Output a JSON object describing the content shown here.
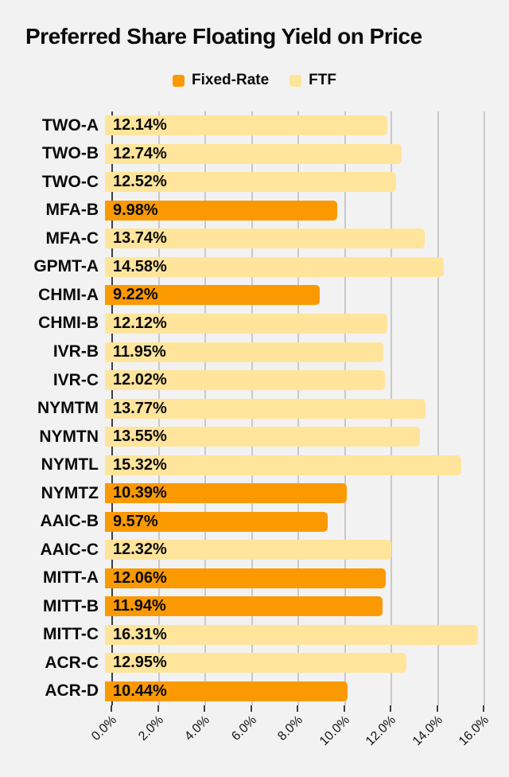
{
  "chart_data": {
    "type": "bar",
    "orientation": "horizontal",
    "title": "Preferred Share Floating Yield on Price",
    "legend": [
      {
        "label": "Fixed-Rate",
        "color": "#FB9902"
      },
      {
        "label": "FTF",
        "color": "#FFE59C"
      }
    ],
    "legend_position": "top-center",
    "x_axis": {
      "ticks": [
        "0.0%",
        "2.0%",
        "4.0%",
        "6.0%",
        "8.0%",
        "10.0%",
        "12.0%",
        "14.0%",
        "16.0%"
      ],
      "min": 0,
      "max": 16,
      "unit": "%",
      "grid": true
    },
    "items": [
      {
        "category": "TWO-A",
        "value": 12.14,
        "label": "12.14%",
        "series": "FTF"
      },
      {
        "category": "TWO-B",
        "value": 12.74,
        "label": "12.74%",
        "series": "FTF"
      },
      {
        "category": "TWO-C",
        "value": 12.52,
        "label": "12.52%",
        "series": "FTF"
      },
      {
        "category": "MFA-B",
        "value": 9.98,
        "label": "9.98%",
        "series": "Fixed-Rate"
      },
      {
        "category": "MFA-C",
        "value": 13.74,
        "label": "13.74%",
        "series": "FTF"
      },
      {
        "category": "GPMT-A",
        "value": 14.58,
        "label": "14.58%",
        "series": "FTF"
      },
      {
        "category": "CHMI-A",
        "value": 9.22,
        "label": "9.22%",
        "series": "Fixed-Rate"
      },
      {
        "category": "CHMI-B",
        "value": 12.12,
        "label": "12.12%",
        "series": "FTF"
      },
      {
        "category": "IVR-B",
        "value": 11.95,
        "label": "11.95%",
        "series": "FTF"
      },
      {
        "category": "IVR-C",
        "value": 12.02,
        "label": "12.02%",
        "series": "FTF"
      },
      {
        "category": "NYMTM",
        "value": 13.77,
        "label": "13.77%",
        "series": "FTF"
      },
      {
        "category": "NYMTN",
        "value": 13.55,
        "label": "13.55%",
        "series": "FTF"
      },
      {
        "category": "NYMTL",
        "value": 15.32,
        "label": "15.32%",
        "series": "FTF"
      },
      {
        "category": "NYMTZ",
        "value": 10.39,
        "label": "10.39%",
        "series": "Fixed-Rate"
      },
      {
        "category": "AAIC-B",
        "value": 9.57,
        "label": "9.57%",
        "series": "Fixed-Rate"
      },
      {
        "category": "AAIC-C",
        "value": 12.32,
        "label": "12.32%",
        "series": "FTF"
      },
      {
        "category": "MITT-A",
        "value": 12.06,
        "label": "12.06%",
        "series": "Fixed-Rate"
      },
      {
        "category": "MITT-B",
        "value": 11.94,
        "label": "11.94%",
        "series": "Fixed-Rate"
      },
      {
        "category": "MITT-C",
        "value": 16.31,
        "label": "16.31%",
        "series": "FTF"
      },
      {
        "category": "ACR-C",
        "value": 12.95,
        "label": "12.95%",
        "series": "FTF"
      },
      {
        "category": "ACR-D",
        "value": 10.44,
        "label": "10.44%",
        "series": "Fixed-Rate"
      }
    ],
    "colors": {
      "background": "#F2F2F2",
      "gridline": "#C9C9C9",
      "axis": "#3F3F3F",
      "text": "#0A0A0A"
    }
  }
}
